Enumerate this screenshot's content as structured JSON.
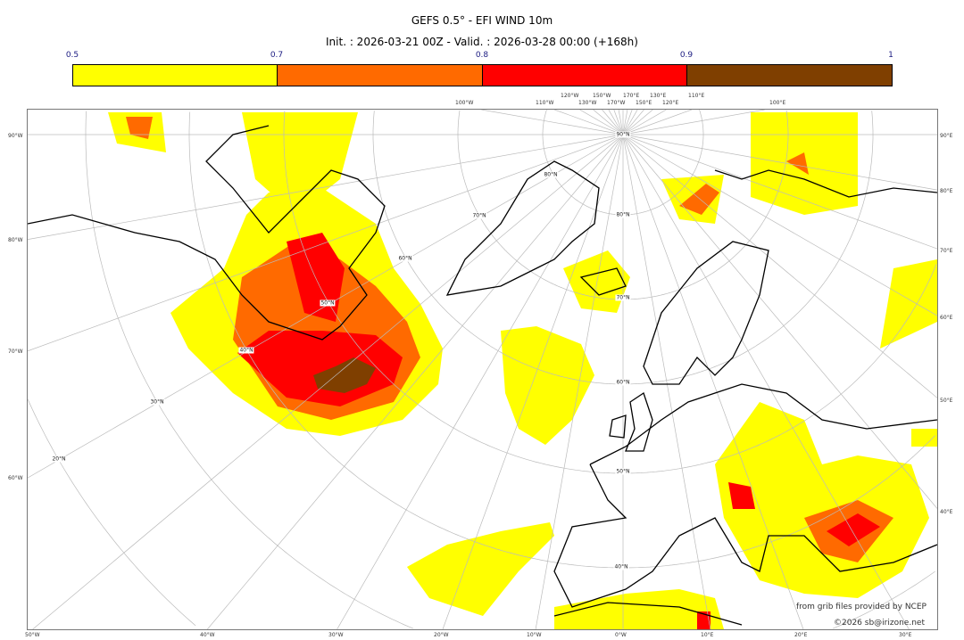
{
  "title": "GEFS 0.5° - EFI WIND 10m",
  "subtitle": "Init. : 2026-03-21 00Z - Valid. : 2026-03-28 00:00 (+168h)",
  "colorbar": {
    "ticks": [
      "0.5",
      "0.7",
      "0.8",
      "0.9",
      "1"
    ],
    "bins": [
      {
        "from": 0.5,
        "to": 0.7,
        "color": "#FFFF00"
      },
      {
        "from": 0.7,
        "to": 0.8,
        "color": "#FF6A00"
      },
      {
        "from": 0.8,
        "to": 0.9,
        "color": "#FF0000"
      },
      {
        "from": 0.9,
        "to": 1.0,
        "color": "#7F3F00"
      }
    ]
  },
  "map": {
    "projection": "polar stereographic",
    "top_labels": [
      "100°W",
      "110°W",
      "120°W",
      "130°W",
      "150°W",
      "170°W",
      "170°E",
      "150°E",
      "130°E",
      "120°E",
      "110°E",
      "100°E"
    ],
    "left_labels": [
      "90°W",
      "80°W",
      "70°W",
      "60°W"
    ],
    "right_labels": [
      "90°E",
      "80°E",
      "70°E",
      "60°E",
      "50°E",
      "40°E"
    ],
    "bottom_labels": [
      "50°W",
      "40°W",
      "30°W",
      "20°W",
      "10°W",
      "0°W",
      "10°E",
      "20°E",
      "30°E"
    ],
    "lat_labels": [
      "90°N",
      "80°N",
      "70°N",
      "60°N",
      "50°N",
      "40°N",
      "30°N",
      "20°N"
    ],
    "inner_lat_labels": [
      "80°N",
      "70°N",
      "60°N",
      "50°N",
      "40°N"
    ],
    "coastline_color": "#000000",
    "grid_color": "#BBBBBB"
  },
  "credits": {
    "line1": "from grib files provided by NCEP",
    "line2": "©2026 sb@irizone.net"
  }
}
